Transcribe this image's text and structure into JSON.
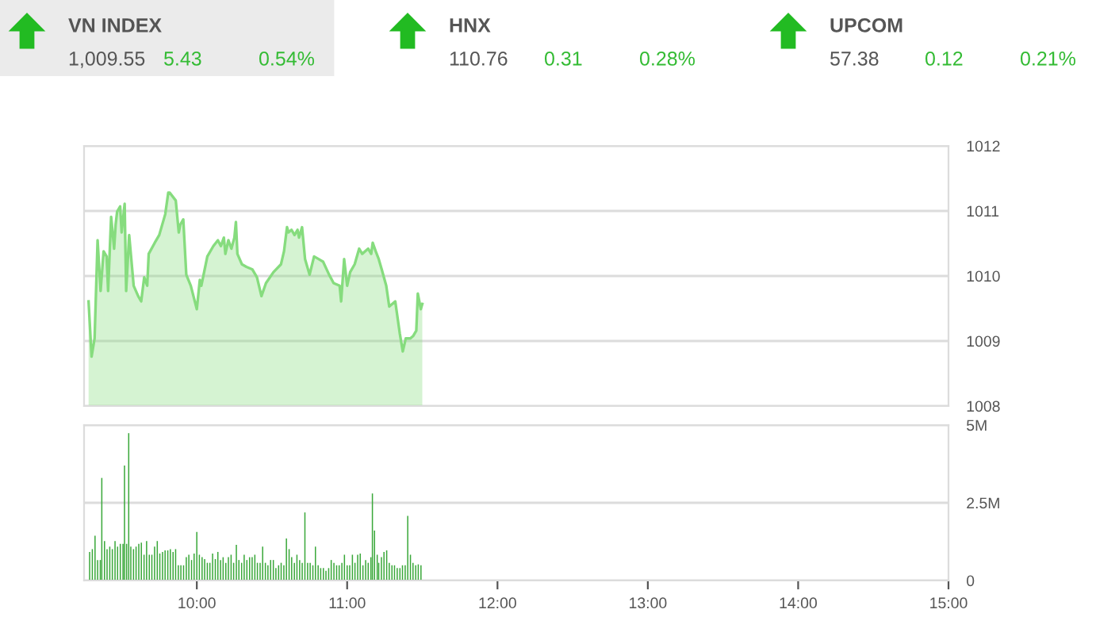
{
  "chart_data": [
    {
      "type": "other",
      "annotations": [
        "VN INDEX",
        "1,009.55",
        "5.43",
        "0.54%",
        "HNX",
        "110.76",
        "0.31",
        "0.28%",
        "UPCOM",
        "57.38",
        "0.12",
        "0.21%"
      ]
    },
    {
      "type": "area",
      "color": "#86dc7e",
      "xlim": [
        9.25,
        15.0
      ],
      "ylim": [
        1008,
        1012
      ],
      "yticks": [
        1008,
        1009,
        1010,
        1011,
        1012
      ],
      "grid": "y",
      "tick_labels": "y",
      "x": [
        9.28,
        9.3,
        9.32,
        9.34,
        9.36,
        9.38,
        9.4,
        9.41,
        9.43,
        9.45,
        9.46,
        9.47,
        9.49,
        9.5,
        9.52,
        9.53,
        9.55,
        9.58,
        9.61,
        9.63,
        9.65,
        9.67,
        9.68,
        9.72,
        9.75,
        9.79,
        9.81,
        9.82,
        9.86,
        9.88,
        9.89,
        9.91,
        9.93,
        9.96,
        10.0,
        10.02,
        10.03,
        10.07,
        10.11,
        10.14,
        10.16,
        10.18,
        10.19,
        10.21,
        10.23,
        10.25,
        10.26,
        10.27,
        10.3,
        10.33,
        10.37,
        10.4,
        10.43,
        10.46,
        10.51,
        10.56,
        10.58,
        10.6,
        10.61,
        10.63,
        10.65,
        10.67,
        10.68,
        10.7,
        10.72,
        10.75,
        10.78,
        10.81,
        10.84,
        10.88,
        10.91,
        10.95,
        10.96,
        10.98,
        11.0,
        11.02,
        11.05,
        11.08,
        11.1,
        11.14,
        11.16,
        11.17,
        11.19,
        11.21,
        11.23,
        11.26,
        11.28,
        11.32,
        11.35,
        11.37,
        11.39,
        11.42,
        11.44,
        11.46,
        11.47,
        11.49,
        11.5
      ],
      "values": [
        1009.61,
        1008.76,
        1009.04,
        1010.55,
        1009.77,
        1010.38,
        1010.3,
        1009.77,
        1010.91,
        1010.42,
        1010.79,
        1010.99,
        1011.07,
        1010.67,
        1011.11,
        1009.77,
        1010.63,
        1009.85,
        1009.69,
        1009.61,
        1009.98,
        1009.85,
        1010.34,
        1010.51,
        1010.63,
        1010.95,
        1011.28,
        1011.28,
        1011.16,
        1010.67,
        1010.79,
        1010.87,
        1010.02,
        1009.85,
        1009.49,
        1009.94,
        1009.85,
        1010.3,
        1010.46,
        1010.55,
        1010.46,
        1010.59,
        1010.34,
        1010.55,
        1010.42,
        1010.59,
        1010.83,
        1010.34,
        1010.18,
        1010.14,
        1010.1,
        1009.98,
        1009.69,
        1009.89,
        1010.06,
        1010.18,
        1010.38,
        1010.75,
        1010.67,
        1010.71,
        1010.63,
        1010.71,
        1010.59,
        1010.75,
        1010.26,
        1010.02,
        1010.3,
        1010.26,
        1010.22,
        1010.02,
        1009.89,
        1009.85,
        1009.61,
        1010.26,
        1009.85,
        1010.06,
        1010.18,
        1010.42,
        1010.34,
        1010.42,
        1010.34,
        1010.51,
        1010.38,
        1010.26,
        1010.1,
        1009.85,
        1009.53,
        1009.61,
        1009.12,
        1008.84,
        1009.04,
        1009.04,
        1009.08,
        1009.16,
        1009.73,
        1009.49,
        1009.57
      ]
    },
    {
      "type": "bar",
      "color": "#3aa83a",
      "xlim": [
        9.25,
        15.0
      ],
      "xticks": [
        {
          "value": 10,
          "label": "10:00"
        },
        {
          "value": 11,
          "label": "11:00"
        },
        {
          "value": 12,
          "label": "12:00"
        },
        {
          "value": 13,
          "label": "13:00"
        },
        {
          "value": 14,
          "label": "14:00"
        },
        {
          "value": 15,
          "label": "15:00"
        }
      ],
      "ylim": [
        0,
        5
      ],
      "yticks": [
        {
          "value": 0,
          "label": "0"
        },
        {
          "value": 2.5,
          "label": "2.5M"
        },
        {
          "value": 5,
          "label": "5M"
        }
      ],
      "grid": "y",
      "x": [
        9.287,
        9.305,
        9.323,
        9.34,
        9.358,
        9.368,
        9.386,
        9.403,
        9.421,
        9.438,
        9.456,
        9.473,
        9.491,
        9.509,
        9.519,
        9.533,
        9.547,
        9.561,
        9.579,
        9.596,
        9.614,
        9.631,
        9.649,
        9.666,
        9.684,
        9.701,
        9.719,
        9.737,
        9.754,
        9.772,
        9.789,
        9.807,
        9.824,
        9.842,
        9.859,
        9.877,
        9.894,
        9.912,
        9.93,
        9.947,
        9.965,
        9.982,
        10.0,
        10.017,
        10.035,
        10.052,
        10.07,
        10.087,
        10.105,
        10.123,
        10.14,
        10.158,
        10.175,
        10.193,
        10.21,
        10.228,
        10.245,
        10.263,
        10.28,
        10.298,
        10.315,
        10.333,
        10.351,
        10.368,
        10.386,
        10.403,
        10.421,
        10.438,
        10.456,
        10.473,
        10.491,
        10.509,
        10.526,
        10.544,
        10.561,
        10.579,
        10.596,
        10.614,
        10.631,
        10.649,
        10.666,
        10.684,
        10.701,
        10.719,
        10.737,
        10.754,
        10.772,
        10.789,
        10.807,
        10.824,
        10.842,
        10.859,
        10.877,
        10.894,
        10.912,
        10.93,
        10.947,
        10.965,
        10.982,
        11.0,
        11.017,
        11.035,
        11.052,
        11.07,
        11.087,
        11.105,
        11.123,
        11.14,
        11.158,
        11.168,
        11.182,
        11.2,
        11.21,
        11.228,
        11.245,
        11.263,
        11.28,
        11.298,
        11.315,
        11.333,
        11.351,
        11.368,
        11.386,
        11.403,
        11.421,
        11.438,
        11.456,
        11.473,
        11.491
      ],
      "values": [
        0.92,
        1.01,
        1.44,
        0.66,
        0.66,
        3.3,
        1.27,
        1.01,
        1.09,
        1.01,
        1.27,
        1.09,
        1.18,
        1.18,
        3.7,
        1.18,
        4.74,
        1.09,
        1.01,
        1.09,
        1.18,
        1.22,
        0.83,
        1.27,
        0.83,
        0.83,
        1.09,
        1.27,
        0.87,
        0.92,
        0.97,
        0.97,
        1.01,
        0.92,
        1.01,
        0.49,
        0.49,
        0.49,
        0.75,
        0.83,
        0.66,
        0.87,
        1.56,
        0.83,
        0.75,
        0.69,
        0.57,
        0.57,
        0.87,
        0.69,
        0.92,
        0.66,
        0.75,
        0.57,
        0.75,
        0.83,
        0.57,
        1.15,
        0.66,
        0.57,
        0.83,
        0.66,
        0.75,
        0.75,
        0.83,
        0.57,
        0.57,
        1.09,
        0.57,
        0.49,
        0.66,
        0.66,
        0.4,
        0.49,
        0.57,
        0.49,
        1.35,
        1.01,
        0.75,
        0.57,
        0.83,
        0.66,
        0.57,
        2.19,
        0.57,
        0.57,
        0.49,
        1.09,
        0.49,
        0.4,
        0.4,
        0.31,
        0.4,
        0.66,
        0.57,
        0.49,
        0.49,
        0.57,
        0.83,
        0.49,
        0.49,
        0.83,
        0.57,
        0.83,
        0.87,
        0.49,
        0.66,
        0.57,
        0.75,
        2.8,
        1.61,
        0.83,
        0.57,
        0.75,
        0.92,
        0.97,
        0.57,
        0.49,
        0.49,
        0.4,
        0.4,
        0.49,
        0.49,
        2.08,
        0.83,
        0.57,
        0.49,
        0.52,
        0.49
      ]
    }
  ]
}
